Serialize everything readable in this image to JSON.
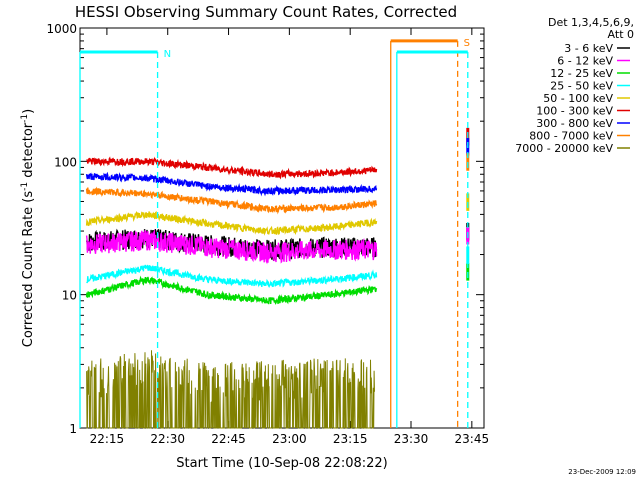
{
  "page": {
    "title": "HESSI Observing Summary Count Rates, Corrected",
    "date_stamp": "23-Dec-2009 12:09"
  },
  "legend": {
    "header_line1": "Det 1,3,4,5,6,9,",
    "header_line2": "Att 0"
  },
  "chart_data": {
    "type": "line",
    "title": "HESSI Observing Summary Count Rates, Corrected",
    "xlabel": "Start Time (10-Sep-08 22:08:22)",
    "ylabel_main": "Corrected Count Rate (s",
    "ylabel_sup1": "-1",
    "ylabel_mid": " detector",
    "ylabel_sup2": "-1",
    "ylabel_end": ")",
    "yscale": "log",
    "ylim": [
      1,
      1000
    ],
    "xlim": [
      "22:08:22",
      "23:48:00"
    ],
    "x_ticks": [
      "22:15",
      "22:30",
      "22:45",
      "23:00",
      "23:15",
      "23:30",
      "23:45"
    ],
    "y_ticks": [
      "1",
      "10",
      "100",
      "1000"
    ],
    "legend_position": "right",
    "series": [
      {
        "name": "3 - 6 keV",
        "color": "#000000",
        "values": [
          {
            "t": "22:10",
            "v": 25
          },
          {
            "t": "22:25",
            "v": 27
          },
          {
            "t": "22:40",
            "v": 24
          },
          {
            "t": "22:55",
            "v": 22
          },
          {
            "t": "23:10",
            "v": 23
          },
          {
            "t": "23:21",
            "v": 23
          },
          {
            "t": "23:44",
            "v": 30
          }
        ]
      },
      {
        "name": "6 - 12 keV",
        "color": "#ff00ff",
        "values": [
          {
            "t": "22:10",
            "v": 24
          },
          {
            "t": "22:25",
            "v": 26
          },
          {
            "t": "22:40",
            "v": 23
          },
          {
            "t": "22:55",
            "v": 21
          },
          {
            "t": "23:10",
            "v": 22
          },
          {
            "t": "23:21",
            "v": 22
          },
          {
            "t": "23:44",
            "v": 28
          }
        ]
      },
      {
        "name": "12 - 25 keV",
        "color": "#00dd00",
        "values": [
          {
            "t": "22:10",
            "v": 10
          },
          {
            "t": "22:25",
            "v": 13
          },
          {
            "t": "22:40",
            "v": 10
          },
          {
            "t": "22:55",
            "v": 9
          },
          {
            "t": "23:10",
            "v": 10
          },
          {
            "t": "23:21",
            "v": 11
          },
          {
            "t": "23:44",
            "v": 15
          }
        ]
      },
      {
        "name": "25 - 50 keV",
        "color": "#00ffff",
        "values": [
          {
            "t": "22:10",
            "v": 13
          },
          {
            "t": "22:25",
            "v": 16
          },
          {
            "t": "22:40",
            "v": 13
          },
          {
            "t": "22:55",
            "v": 12
          },
          {
            "t": "23:10",
            "v": 13
          },
          {
            "t": "23:21",
            "v": 14
          },
          {
            "t": "23:44",
            "v": 20
          }
        ]
      },
      {
        "name": "50 - 100 keV",
        "color": "#e0c800",
        "values": [
          {
            "t": "22:10",
            "v": 35
          },
          {
            "t": "22:25",
            "v": 40
          },
          {
            "t": "22:40",
            "v": 34
          },
          {
            "t": "22:55",
            "v": 30
          },
          {
            "t": "23:10",
            "v": 32
          },
          {
            "t": "23:21",
            "v": 35
          },
          {
            "t": "23:44",
            "v": 50
          }
        ]
      },
      {
        "name": "100 - 300 keV",
        "color": "#e00000",
        "values": [
          {
            "t": "22:10",
            "v": 100
          },
          {
            "t": "22:25",
            "v": 100
          },
          {
            "t": "22:40",
            "v": 90
          },
          {
            "t": "22:55",
            "v": 80
          },
          {
            "t": "23:10",
            "v": 82
          },
          {
            "t": "23:21",
            "v": 86
          },
          {
            "t": "23:44",
            "v": 155
          }
        ]
      },
      {
        "name": "300 - 800 keV",
        "color": "#0000ff",
        "values": [
          {
            "t": "22:10",
            "v": 77
          },
          {
            "t": "22:25",
            "v": 75
          },
          {
            "t": "22:40",
            "v": 65
          },
          {
            "t": "22:55",
            "v": 60
          },
          {
            "t": "23:10",
            "v": 61
          },
          {
            "t": "23:21",
            "v": 62
          },
          {
            "t": "23:44",
            "v": 130
          }
        ]
      },
      {
        "name": "800 - 7000 keV",
        "color": "#ff8000",
        "values": [
          {
            "t": "22:10",
            "v": 60
          },
          {
            "t": "22:25",
            "v": 57
          },
          {
            "t": "22:40",
            "v": 50
          },
          {
            "t": "22:55",
            "v": 44
          },
          {
            "t": "23:10",
            "v": 45
          },
          {
            "t": "23:21",
            "v": 48
          },
          {
            "t": "23:44",
            "v": 100
          }
        ]
      },
      {
        "name": "7000 - 20000 keV",
        "color": "#808000",
        "values": [
          {
            "t": "22:10",
            "v": 1.8
          },
          {
            "t": "22:25",
            "v": 2.2
          },
          {
            "t": "22:40",
            "v": 1.7
          },
          {
            "t": "22:55",
            "v": 1.8
          },
          {
            "t": "23:10",
            "v": 1.9
          },
          {
            "t": "23:21",
            "v": 1.8
          }
        ]
      }
    ],
    "markers": [
      {
        "label": "N",
        "color": "#00ffff",
        "bar_start": "22:08:22",
        "bar_end": "22:27:30",
        "bar_level": 660,
        "line": "22:27:30"
      },
      {
        "label": "S",
        "color": "#ff8000",
        "bar_start": "23:25:00",
        "bar_end": "23:41:30",
        "bar_level": 800,
        "line": "23:41:30"
      },
      {
        "label": "",
        "color": "#00ffff",
        "bar_start": "23:26:30",
        "bar_end": "23:44:00",
        "bar_level": 660,
        "line": "23:44:00"
      }
    ]
  }
}
